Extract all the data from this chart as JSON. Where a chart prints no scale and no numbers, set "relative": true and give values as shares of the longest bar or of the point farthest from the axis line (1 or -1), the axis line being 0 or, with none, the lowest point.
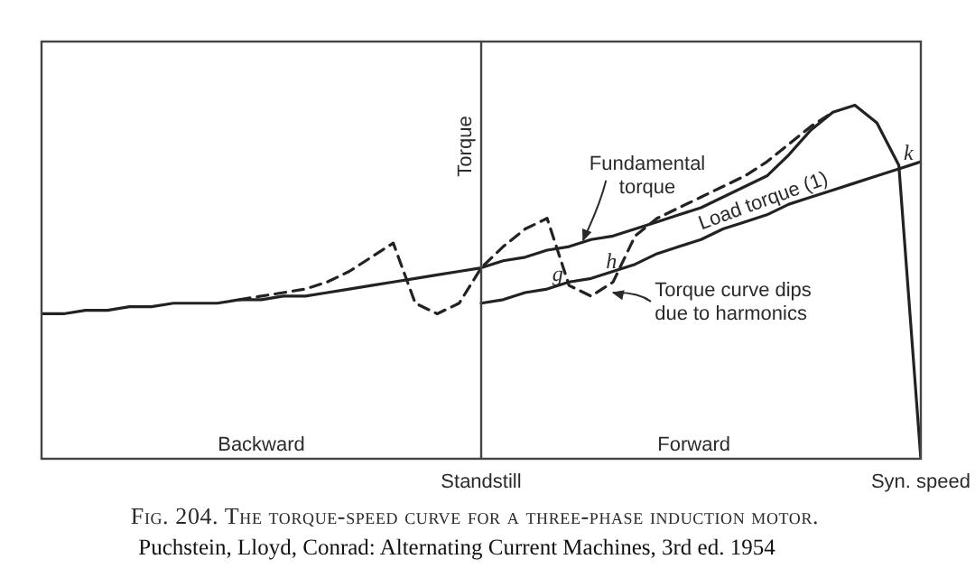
{
  "chart_data": {
    "type": "line",
    "title": "Fig. 204. The torque-speed curve for a three-phase induction motor.",
    "ylabel": "Torque",
    "relative": true,
    "categories": [
      null,
      null,
      null,
      null,
      null,
      null,
      null,
      null,
      null,
      null,
      null,
      null,
      null,
      null,
      null,
      null,
      null,
      null,
      null,
      null,
      "Standstill",
      null,
      null,
      null,
      null,
      null,
      null,
      null,
      null,
      null,
      null,
      null,
      null,
      null,
      null,
      null,
      null,
      null,
      null,
      null,
      "Syn. speed"
    ],
    "tick_labels": "x",
    "marker": "none",
    "line_style": "solid",
    "series": [
      {
        "color": "#222222",
        "values": [
          0.41,
          0.41,
          0.42,
          0.42,
          0.43,
          0.43,
          0.44,
          0.44,
          0.44,
          0.45,
          0.45,
          0.46,
          0.46,
          0.47,
          0.48,
          0.49,
          0.5,
          0.51,
          0.52,
          0.53,
          0.54,
          0.56,
          0.57,
          0.59,
          0.6,
          0.62,
          0.63,
          0.65,
          0.67,
          0.69,
          0.71,
          0.74,
          0.77,
          0.8,
          0.86,
          0.93,
          0.98,
          1,
          0.95,
          0.83,
          0
        ]
      },
      {
        "color": "#222222",
        "values": [
          null,
          null,
          null,
          null,
          null,
          null,
          null,
          null,
          null,
          null,
          null,
          null,
          null,
          null,
          null,
          null,
          null,
          null,
          null,
          null,
          0.44,
          0.45,
          0.47,
          0.48,
          0.5,
          0.51,
          0.53,
          0.55,
          0.58,
          0.6,
          0.62,
          0.65,
          0.67,
          0.69,
          0.72,
          0.74,
          0.76,
          0.78,
          0.8,
          0.82,
          0.84
        ]
      },
      {
        "color": "#222222",
        "line_style": "dashed",
        "values": [
          null,
          null,
          null,
          null,
          null,
          null,
          null,
          null,
          null,
          0.45,
          0.46,
          0.47,
          0.48,
          0.5,
          0.53,
          0.57,
          0.61,
          0.44,
          0.41,
          0.44,
          0.54,
          0.6,
          0.65,
          0.68,
          0.49,
          0.46,
          0.5,
          0.63,
          0.68,
          0.71,
          0.74,
          0.77,
          0.8,
          0.84,
          0.89,
          0.94,
          0.98,
          null,
          null,
          null,
          null
        ]
      }
    ],
    "annotations": [
      "Fundamental torque",
      "Load torque (1)",
      "Torque curve dips due to harmonics",
      "g",
      "h",
      "k",
      "Backward",
      "Forward",
      "Puchstein, Lloyd, Conrad: Alternating Current Machines, 3rd ed. 1954"
    ]
  }
}
